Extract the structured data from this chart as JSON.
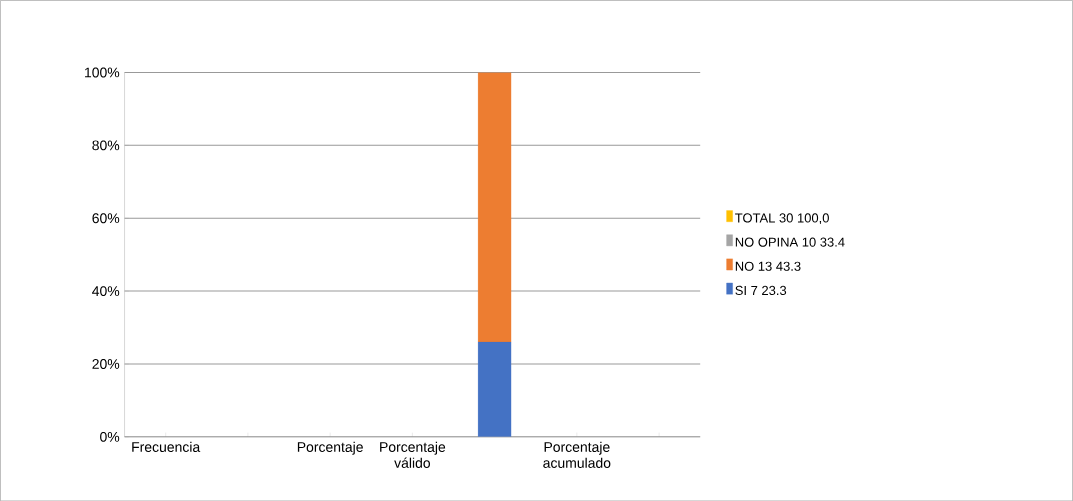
{
  "chart_data": {
    "type": "bar",
    "stacked": true,
    "categories": [
      "Frecuencia",
      null,
      "Porcentaje",
      "Porcentaje válido",
      null,
      "Porcentaje acumulado",
      null
    ],
    "series": [
      {
        "name": "SI 7 23.3",
        "color": "#4472c4",
        "values": [
          null,
          null,
          null,
          null,
          26,
          null,
          null
        ]
      },
      {
        "name": "NO 13 43.3",
        "color": "#ed7d31",
        "values": [
          null,
          null,
          null,
          null,
          74,
          null,
          null
        ]
      },
      {
        "name": "NO OPINA 10 33.4",
        "color": "#a5a5a5",
        "values": [
          null,
          null,
          null,
          null,
          0,
          null,
          null
        ]
      },
      {
        "name": "TOTAL 30 100,0",
        "color": "#ffc000",
        "values": [
          null,
          0,
          null,
          null,
          null,
          null,
          null
        ]
      }
    ],
    "ylim": [
      0,
      100
    ],
    "yticks": [
      {
        "value": 0,
        "label": "0%"
      },
      {
        "value": 20,
        "label": "20%"
      },
      {
        "value": 40,
        "label": "40%"
      },
      {
        "value": 60,
        "label": "60%"
      },
      {
        "value": 80,
        "label": "80%"
      },
      {
        "value": 100,
        "label": "100%"
      }
    ],
    "grid": "y",
    "legend": "right"
  }
}
